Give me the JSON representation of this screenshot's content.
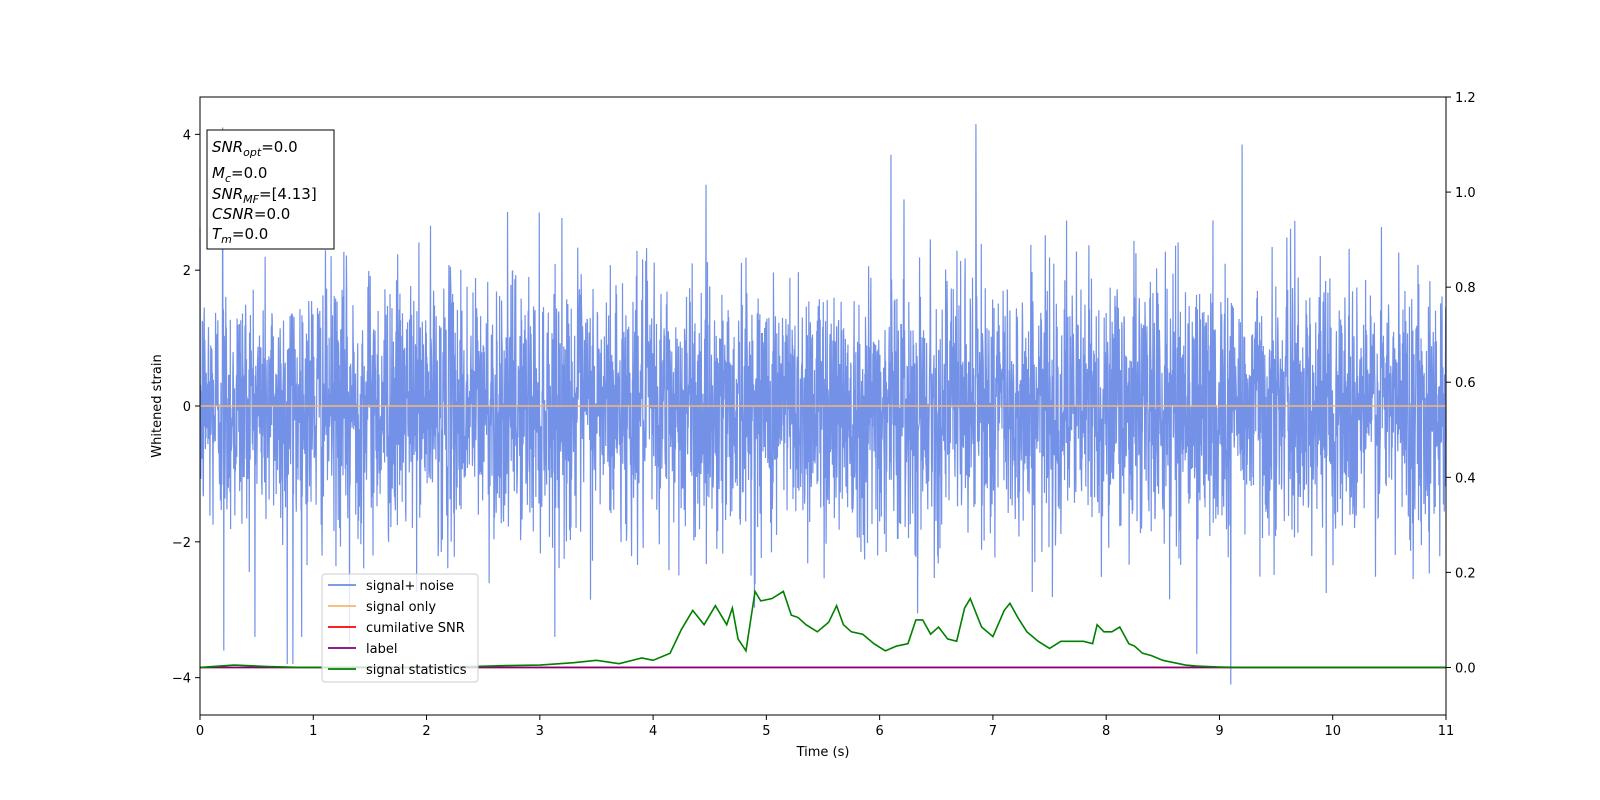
{
  "chart_data": {
    "type": "line",
    "xlabel": "Time (s)",
    "ylabel": "Whitened strain",
    "xlim": [
      0,
      11
    ],
    "ylim_left": [
      -4.55,
      4.55
    ],
    "ylim_right": [
      -0.1,
      1.2
    ],
    "x_ticks": [
      "0",
      "1",
      "2",
      "3",
      "4",
      "5",
      "6",
      "7",
      "8",
      "9",
      "10",
      "11"
    ],
    "y_ticks_left": [
      "−4",
      "−2",
      "0",
      "2",
      "4"
    ],
    "y_ticks_right": [
      "0.0",
      "0.2",
      "0.4",
      "0.6",
      "0.8",
      "1.0",
      "1.2"
    ],
    "grid": false,
    "legend_position": "lower-left",
    "annotation": {
      "lines": [
        {
          "base": "SNR",
          "sub": "opt",
          "rest": "=0.0"
        },
        {
          "base": "M",
          "sub": "c",
          "rest": "=0.0"
        },
        {
          "base": "SNR",
          "sub": "MF",
          "rest": "=[4.13]"
        },
        {
          "base": "CSNR",
          "sub": "",
          "rest": "=0.0"
        },
        {
          "base": "T",
          "sub": "m",
          "rest": "=0.0"
        }
      ]
    },
    "series": [
      {
        "name": "signal+ noise",
        "axis": "left",
        "color": "#6b8be6",
        "style": "noise",
        "sample_rate_hz": 400,
        "std": 0.95,
        "extremes": [
          {
            "x": 0.2,
            "y": 4.1
          },
          {
            "x": 0.77,
            "y": -3.8
          },
          {
            "x": 0.82,
            "y": -3.8
          },
          {
            "x": 0.21,
            "y": -3.6
          },
          {
            "x": 6.1,
            "y": 3.7
          },
          {
            "x": 6.85,
            "y": 4.15
          },
          {
            "x": 9.1,
            "y": -4.1
          },
          {
            "x": 9.2,
            "y": 3.85
          },
          {
            "x": 8.8,
            "y": -3.65
          },
          {
            "x": 1.32,
            "y": -3.5
          }
        ]
      },
      {
        "name": "signal only",
        "axis": "left",
        "color": "#f5b771",
        "x": [
          0,
          11
        ],
        "y": [
          0,
          0
        ]
      },
      {
        "name": "cumilative SNR",
        "axis": "right",
        "color": "#ff0000",
        "x": [
          0,
          11
        ],
        "y": [
          0,
          0
        ]
      },
      {
        "name": "label",
        "axis": "right",
        "color": "#800080",
        "x": [
          0,
          11
        ],
        "y": [
          0,
          0
        ]
      },
      {
        "name": "signal statistics",
        "axis": "right",
        "color": "#008000",
        "x": [
          0,
          0.3,
          0.6,
          0.9,
          1.2,
          1.5,
          1.8,
          2.1,
          2.4,
          2.7,
          3.0,
          3.3,
          3.5,
          3.7,
          3.9,
          4.0,
          4.15,
          4.25,
          4.35,
          4.45,
          4.5,
          4.55,
          4.65,
          4.7,
          4.75,
          4.82,
          4.9,
          4.95,
          5.05,
          5.15,
          5.22,
          5.28,
          5.35,
          5.45,
          5.55,
          5.62,
          5.68,
          5.75,
          5.85,
          5.95,
          6.05,
          6.15,
          6.25,
          6.32,
          6.38,
          6.45,
          6.52,
          6.6,
          6.68,
          6.75,
          6.8,
          6.9,
          7.0,
          7.1,
          7.15,
          7.22,
          7.3,
          7.4,
          7.5,
          7.6,
          7.7,
          7.8,
          7.88,
          7.92,
          7.98,
          8.05,
          8.12,
          8.2,
          8.25,
          8.32,
          8.4,
          8.5,
          8.6,
          8.7,
          8.8,
          8.9,
          9.0,
          9.2,
          9.6,
          10.0,
          11.0
        ],
        "y": [
          0.0,
          0.005,
          0.002,
          0.0,
          0.0,
          0.001,
          0.0,
          0.001,
          0.002,
          0.004,
          0.005,
          0.01,
          0.015,
          0.008,
          0.02,
          0.015,
          0.03,
          0.08,
          0.12,
          0.09,
          0.11,
          0.13,
          0.09,
          0.125,
          0.06,
          0.035,
          0.16,
          0.14,
          0.145,
          0.16,
          0.11,
          0.105,
          0.09,
          0.075,
          0.095,
          0.13,
          0.09,
          0.075,
          0.07,
          0.05,
          0.035,
          0.045,
          0.05,
          0.1,
          0.1,
          0.07,
          0.085,
          0.06,
          0.055,
          0.125,
          0.145,
          0.085,
          0.065,
          0.12,
          0.135,
          0.105,
          0.075,
          0.055,
          0.04,
          0.055,
          0.055,
          0.055,
          0.05,
          0.09,
          0.075,
          0.075,
          0.085,
          0.05,
          0.045,
          0.03,
          0.025,
          0.015,
          0.01,
          0.005,
          0.003,
          0.002,
          0.001,
          0.0,
          0.0,
          0.0,
          0.0
        ]
      }
    ]
  }
}
